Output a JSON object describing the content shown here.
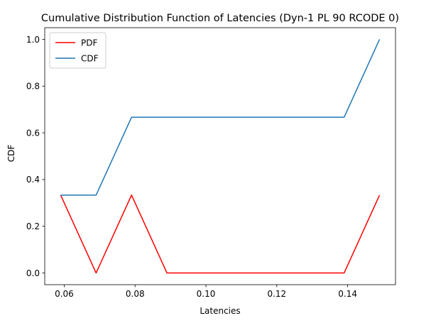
{
  "chart_data": {
    "type": "line",
    "title": "Cumulative Distribution Function of Latencies (Dyn-1 PL 90 RCODE 0)",
    "xlabel": "Latencies",
    "ylabel": "CDF",
    "x": [
      0.059,
      0.069,
      0.079,
      0.089,
      0.099,
      0.109,
      0.119,
      0.129,
      0.139,
      0.149
    ],
    "series": [
      {
        "name": "PDF",
        "color": "#ff0000",
        "values": [
          0.3333,
          0.0,
          0.3333,
          0.0,
          0.0,
          0.0,
          0.0,
          0.0,
          0.0,
          0.3333
        ]
      },
      {
        "name": "CDF",
        "color": "#1f77b4",
        "values": [
          0.3333,
          0.3333,
          0.6667,
          0.6667,
          0.6667,
          0.6667,
          0.6667,
          0.6667,
          0.6667,
          1.0
        ]
      }
    ],
    "xlim": [
      0.0545,
      0.1535
    ],
    "ylim": [
      -0.05,
      1.05
    ],
    "xticks": [
      0.06,
      0.08,
      0.1,
      0.12,
      0.14
    ],
    "xtick_labels": [
      "0.06",
      "0.08",
      "0.10",
      "0.12",
      "0.14"
    ],
    "yticks": [
      0.0,
      0.2,
      0.4,
      0.6,
      0.8,
      1.0
    ],
    "ytick_labels": [
      "0.0",
      "0.2",
      "0.4",
      "0.6",
      "0.8",
      "1.0"
    ],
    "grid": false,
    "legend_position": "upper-left"
  }
}
